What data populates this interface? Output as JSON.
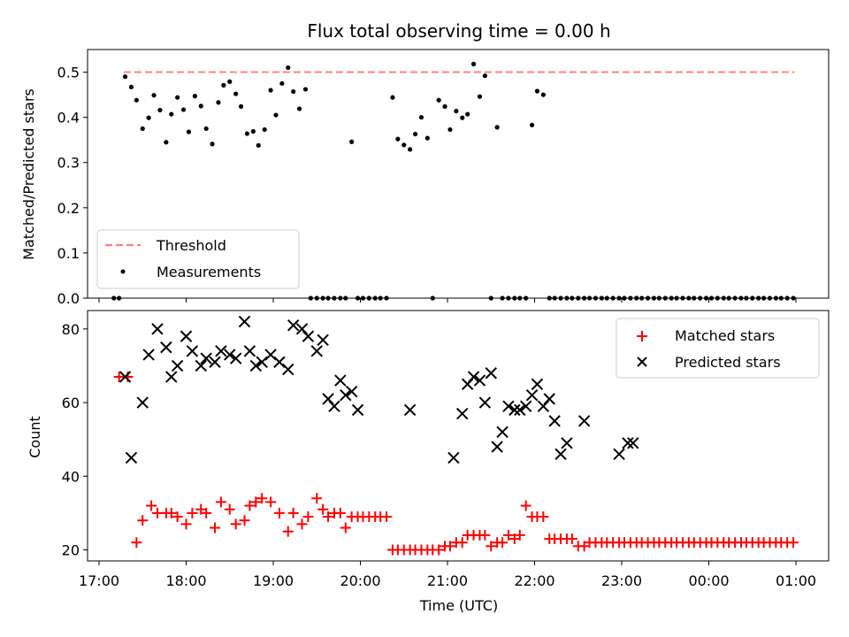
{
  "chart_data": [
    {
      "type": "scatter",
      "title": "Flux total observing time = 0.00 h",
      "xlabel": "",
      "ylabel": "Matched/Predicted stars",
      "ylim": [
        0,
        0.55
      ],
      "yticks": [
        "0.0",
        "0.1",
        "0.2",
        "0.3",
        "0.4",
        "0.5"
      ],
      "grid": false,
      "legend_position": "lower-left",
      "threshold": {
        "name": "Threshold",
        "value": 0.5,
        "x_start": "17:17",
        "x_end": "00:59",
        "color": "#ff8080",
        "style": "dashed"
      },
      "series": [
        {
          "name": "Measurements",
          "color": "#000000",
          "marker": "dot",
          "x_hours": [
            17.17,
            17.23,
            17.3,
            17.37,
            17.43,
            17.5,
            17.57,
            17.63,
            17.7,
            17.77,
            17.83,
            17.9,
            17.97,
            18.03,
            18.1,
            18.17,
            18.23,
            18.3,
            18.37,
            18.43,
            18.5,
            18.57,
            18.63,
            18.7,
            18.77,
            18.83,
            18.9,
            18.97,
            19.03,
            19.1,
            19.17,
            19.23,
            19.3,
            19.37,
            19.43,
            19.5,
            19.57,
            19.63,
            19.7,
            19.77,
            19.83,
            19.9,
            19.97,
            20.03,
            20.1,
            20.17,
            20.23,
            20.3,
            20.37,
            20.43,
            20.5,
            20.57,
            20.63,
            20.7,
            20.77,
            20.83,
            20.9,
            20.97,
            21.03,
            21.1,
            21.17,
            21.23,
            21.3,
            21.37,
            21.43,
            21.5,
            21.57,
            21.63,
            21.7,
            21.77,
            21.83,
            21.9,
            21.97,
            22.03,
            22.1,
            22.17,
            22.23,
            22.3,
            22.37,
            22.43,
            22.5,
            22.57,
            22.63,
            22.7,
            22.77,
            22.83,
            22.9,
            22.97,
            23.03,
            23.1,
            23.17,
            23.23,
            23.3,
            23.37,
            23.43,
            23.5,
            23.57,
            23.63,
            23.7,
            23.77,
            23.83,
            23.9,
            23.97,
            24.03,
            24.1,
            24.17,
            24.23,
            24.3,
            24.37,
            24.43,
            24.5,
            24.57,
            24.63,
            24.7,
            24.77,
            24.83,
            24.9,
            24.97
          ],
          "values": [
            0.0,
            0.0,
            0.49,
            0.467,
            0.438,
            0.375,
            0.399,
            0.449,
            0.416,
            0.345,
            0.407,
            0.444,
            0.417,
            0.368,
            0.447,
            0.425,
            0.375,
            0.341,
            0.433,
            0.471,
            0.479,
            0.452,
            0.424,
            0.364,
            0.369,
            0.338,
            0.373,
            0.46,
            0.405,
            0.475,
            0.51,
            0.457,
            0.419,
            0.462,
            0.0,
            0.0,
            0.0,
            0.0,
            0.0,
            0.0,
            0.0,
            0.346,
            0.0,
            0.0,
            0.0,
            0.0,
            0.0,
            0.0,
            0.444,
            0.352,
            0.339,
            0.329,
            0.363,
            0.4,
            0.354,
            0.0,
            0.438,
            0.424,
            0.373,
            0.414,
            0.399,
            0.407,
            0.518,
            0.446,
            0.492,
            0.0,
            0.378,
            0.0,
            0.0,
            0.0,
            0.0,
            0.0,
            0.383,
            0.458,
            0.45,
            0.0,
            0.0,
            0.0,
            0.0,
            0.0,
            0.0,
            0.0,
            0.0,
            0.0,
            0.0,
            0.0,
            0.0,
            0.0,
            0.0,
            0.0,
            0.0,
            0.0,
            0.0,
            0.0,
            0.0,
            0.0,
            0.0,
            0.0,
            0.0,
            0.0,
            0.0,
            0.0,
            0.0,
            0.0,
            0.0,
            0.0,
            0.0,
            0.0,
            0.0,
            0.0,
            0.0,
            0.0,
            0.0,
            0.0,
            0.0,
            0.0,
            0.0,
            0.0
          ]
        }
      ]
    },
    {
      "type": "scatter",
      "xlabel": "Time (UTC)",
      "ylabel": "Count",
      "ylim": [
        17,
        85
      ],
      "yticks": [
        "20",
        "40",
        "60",
        "80"
      ],
      "xticks": [
        "17:00",
        "18:00",
        "19:00",
        "20:00",
        "21:00",
        "22:00",
        "23:00",
        "00:00",
        "01:00"
      ],
      "grid": false,
      "legend_position": "top-right",
      "series": [
        {
          "name": "Matched stars",
          "color": "#ff0000",
          "marker": "plus",
          "x_hours": [
            17.23,
            17.33,
            17.43,
            17.5,
            17.6,
            17.67,
            17.77,
            17.83,
            17.9,
            18.0,
            18.07,
            18.17,
            18.23,
            18.33,
            18.4,
            18.5,
            18.57,
            18.67,
            18.73,
            18.8,
            18.87,
            18.97,
            19.07,
            19.17,
            19.23,
            19.33,
            19.4,
            19.5,
            19.57,
            19.63,
            19.7,
            19.77,
            19.83,
            19.9,
            19.97,
            20.03,
            20.1,
            20.17,
            20.23,
            20.3,
            20.37,
            20.43,
            20.5,
            20.57,
            20.63,
            20.7,
            20.77,
            20.83,
            20.9,
            20.97,
            21.03,
            21.1,
            21.17,
            21.23,
            21.3,
            21.37,
            21.43,
            21.5,
            21.57,
            21.63,
            21.7,
            21.77,
            21.83,
            21.9,
            21.97,
            22.03,
            22.1,
            22.17,
            22.23,
            22.3,
            22.37,
            22.43,
            22.5,
            22.57,
            22.63,
            22.7,
            22.77,
            22.83,
            22.9,
            22.97,
            23.03,
            23.1,
            23.17,
            23.23,
            23.3,
            23.37,
            23.43,
            23.5,
            23.57,
            23.63,
            23.7,
            23.77,
            23.83,
            23.9,
            23.97,
            24.03,
            24.1,
            24.17,
            24.23,
            24.3,
            24.37,
            24.43,
            24.5,
            24.57,
            24.63,
            24.7,
            24.77,
            24.83,
            24.9,
            24.97
          ],
          "values": [
            67,
            67,
            22,
            28,
            32,
            30,
            30,
            30,
            29,
            27,
            30,
            31,
            30,
            26,
            33,
            31,
            27,
            28,
            32,
            33,
            34,
            33,
            30,
            25,
            30,
            27,
            29,
            34,
            31,
            29,
            30,
            30,
            26,
            29,
            29,
            29,
            29,
            29,
            29,
            29,
            20,
            20,
            20,
            20,
            20,
            20,
            20,
            20,
            20,
            21,
            21,
            22,
            22,
            24,
            24,
            24,
            24,
            21,
            22,
            22,
            24,
            23,
            24,
            32,
            29,
            29,
            29,
            23,
            23,
            23,
            23,
            23,
            21,
            21,
            22,
            22,
            22,
            22,
            22,
            22,
            22,
            22,
            22,
            22,
            22,
            22,
            22,
            22,
            22,
            22,
            22,
            22,
            22,
            22,
            22,
            22,
            22,
            22,
            22,
            22,
            22,
            22,
            22,
            22,
            22,
            22,
            22,
            22,
            22,
            22
          ]
        },
        {
          "name": "Predicted stars",
          "color": "#000000",
          "marker": "x",
          "x_hours": [
            17.3,
            17.37,
            17.5,
            17.57,
            17.67,
            17.77,
            17.83,
            17.9,
            18.0,
            18.07,
            18.17,
            18.23,
            18.33,
            18.4,
            18.5,
            18.57,
            18.67,
            18.73,
            18.8,
            18.87,
            18.97,
            19.07,
            19.17,
            19.23,
            19.33,
            19.4,
            19.5,
            19.57,
            19.63,
            19.7,
            19.77,
            19.83,
            19.9,
            19.97,
            20.57,
            21.07,
            21.17,
            21.23,
            21.3,
            21.37,
            21.43,
            21.5,
            21.57,
            21.63,
            21.7,
            21.77,
            21.83,
            21.9,
            21.97,
            22.03,
            22.1,
            22.17,
            22.23,
            22.3,
            22.37,
            22.57,
            22.97,
            23.07,
            23.13
          ],
          "values": [
            67,
            45,
            60,
            73,
            80,
            75,
            67,
            70,
            78,
            74,
            70,
            72,
            71,
            74,
            73,
            72,
            82,
            74,
            70,
            71,
            73,
            71,
            69,
            81,
            80,
            78,
            74,
            77,
            61,
            59,
            66,
            62,
            63,
            58,
            58,
            45,
            57,
            65,
            67,
            66,
            60,
            68,
            48,
            52,
            59,
            58,
            58,
            59,
            62,
            65,
            59,
            61,
            55,
            46,
            49,
            55,
            46,
            49,
            49
          ]
        }
      ]
    }
  ]
}
